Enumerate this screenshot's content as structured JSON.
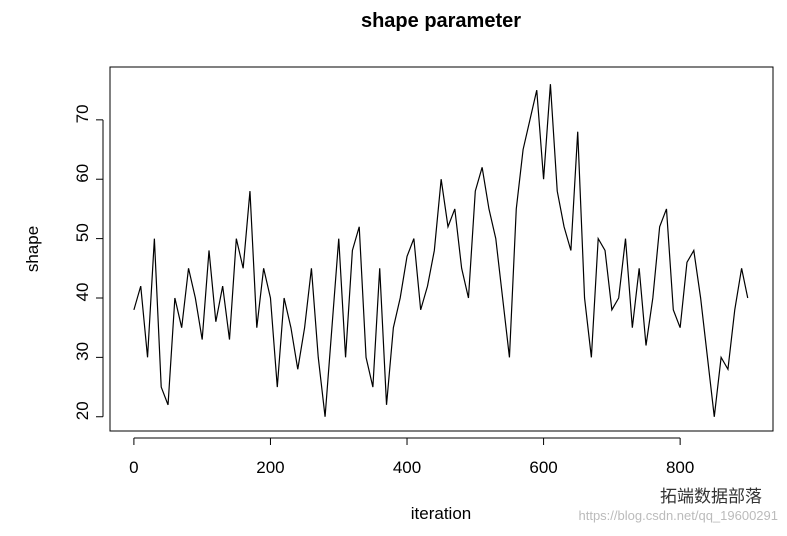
{
  "chart_data": {
    "type": "line",
    "title": "shape parameter",
    "x_label": "iteration",
    "y_label": "shape",
    "x": [
      0,
      10,
      20,
      30,
      40,
      50,
      60,
      70,
      80,
      90,
      100,
      110,
      120,
      130,
      140,
      150,
      160,
      170,
      180,
      190,
      200,
      210,
      220,
      230,
      240,
      250,
      260,
      270,
      280,
      290,
      300,
      310,
      320,
      330,
      340,
      350,
      360,
      370,
      380,
      390,
      400,
      410,
      420,
      430,
      440,
      450,
      460,
      470,
      480,
      490,
      500,
      510,
      520,
      530,
      540,
      550,
      560,
      570,
      580,
      590,
      600,
      610,
      620,
      630,
      640,
      650,
      660,
      670,
      680,
      690,
      700,
      710,
      720,
      730,
      740,
      750,
      760,
      770,
      780,
      790,
      800,
      810,
      820,
      830,
      840,
      850,
      860,
      870,
      880,
      890,
      899
    ],
    "series": [
      {
        "name": "shape",
        "color": "#000000",
        "values": [
          38,
          42,
          30,
          50,
          25,
          22,
          40,
          35,
          45,
          40,
          33,
          48,
          36,
          42,
          33,
          50,
          45,
          58,
          35,
          45,
          40,
          25,
          40,
          35,
          28,
          35,
          45,
          30,
          20,
          35,
          50,
          30,
          48,
          52,
          30,
          25,
          45,
          22,
          35,
          40,
          47,
          50,
          38,
          42,
          48,
          60,
          52,
          55,
          45,
          40,
          58,
          62,
          55,
          50,
          40,
          30,
          55,
          65,
          70,
          75,
          60,
          76,
          58,
          52,
          48,
          68,
          40,
          30,
          50,
          48,
          38,
          40,
          50,
          35,
          45,
          32,
          40,
          52,
          55,
          38,
          35,
          46,
          48,
          40,
          30,
          20,
          30,
          28,
          38,
          45,
          40
        ]
      }
    ],
    "xlim": [
      -35,
      936
    ],
    "ylim": [
      17.6,
      78.9
    ],
    "xticks": [
      0,
      200,
      400,
      600,
      800
    ],
    "yticks": [
      20,
      30,
      40,
      50,
      60,
      70
    ],
    "watermark": "拓端数据部落",
    "watermark_url": "https://blog.csdn.net/qq_19600291"
  }
}
